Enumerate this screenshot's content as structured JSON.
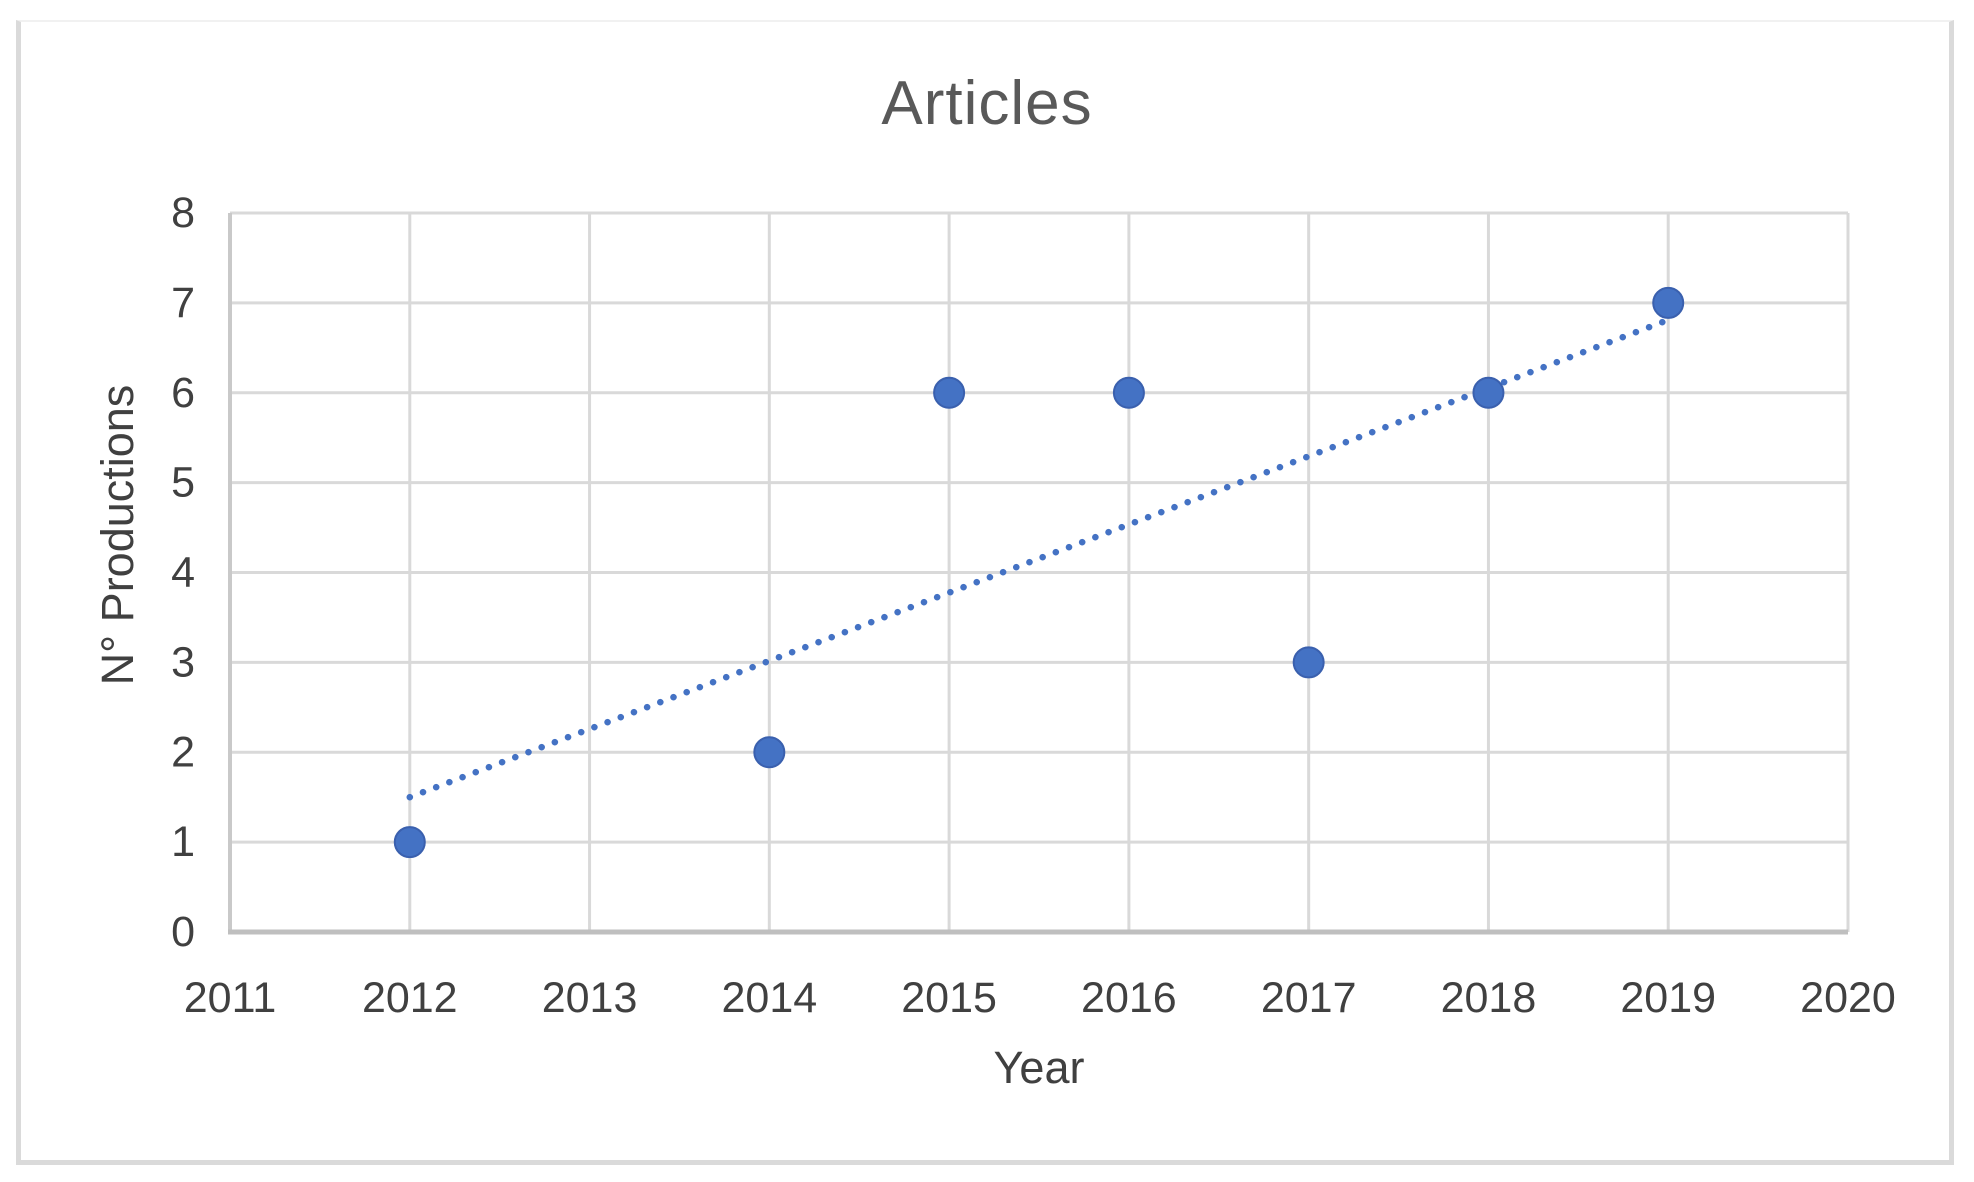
{
  "chart_data": {
    "type": "scatter",
    "title": "Articles",
    "xlabel": "Year",
    "ylabel": "N° Productions",
    "x_ticks": [
      2011,
      2012,
      2013,
      2014,
      2015,
      2016,
      2017,
      2018,
      2019,
      2020
    ],
    "y_ticks": [
      0,
      1,
      2,
      3,
      4,
      5,
      6,
      7,
      8
    ],
    "xlim": [
      2011,
      2020
    ],
    "ylim": [
      0,
      8
    ],
    "grid": true,
    "legend": false,
    "series": [
      {
        "name": "Articles",
        "marker": "circle",
        "points": [
          {
            "x": 2012,
            "y": 1
          },
          {
            "x": 2014,
            "y": 2
          },
          {
            "x": 2015,
            "y": 6
          },
          {
            "x": 2016,
            "y": 6
          },
          {
            "x": 2017,
            "y": 3
          },
          {
            "x": 2018,
            "y": 6
          },
          {
            "x": 2019,
            "y": 7
          }
        ]
      }
    ],
    "trendline": {
      "type": "linear",
      "style": "dotted",
      "start": {
        "x": 2012,
        "y": 1.5
      },
      "end": {
        "x": 2019,
        "y": 6.81
      }
    },
    "colors": {
      "marker": "#4472C4",
      "marker_edge": "#3A60AE",
      "trendline": "#4472C4",
      "gridline": "#D9D9D9",
      "x_axis_line": "#BFBFBF",
      "y_axis_line": "#C9C9C9",
      "tick_label": "#404040",
      "axis_title": "#404040",
      "title": "#595959",
      "frame_border": "#DADADA",
      "background": "#FFFFFF"
    }
  }
}
